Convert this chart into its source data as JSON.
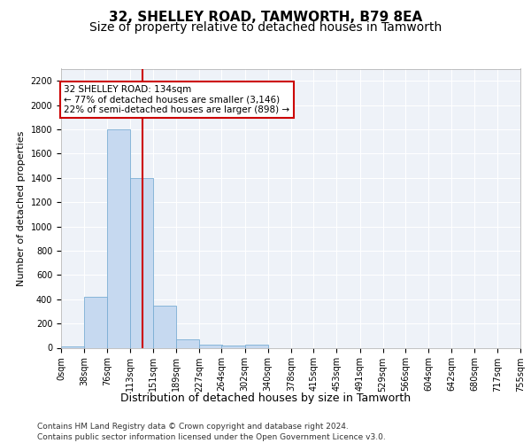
{
  "title": "32, SHELLEY ROAD, TAMWORTH, B79 8EA",
  "subtitle": "Size of property relative to detached houses in Tamworth",
  "xlabel": "Distribution of detached houses by size in Tamworth",
  "ylabel": "Number of detached properties",
  "bin_edges": [
    0,
    38,
    76,
    113,
    151,
    189,
    227,
    264,
    302,
    340,
    378,
    415,
    453,
    491,
    529,
    566,
    604,
    642,
    680,
    717,
    755
  ],
  "bar_values": [
    10,
    420,
    1800,
    1400,
    350,
    70,
    25,
    15,
    25,
    0,
    0,
    0,
    0,
    0,
    0,
    0,
    0,
    0,
    0,
    0
  ],
  "bar_color": "#c6d9f0",
  "bar_edge_color": "#7aadd4",
  "property_size": 134,
  "red_line_color": "#cc0000",
  "annotation_text": "32 SHELLEY ROAD: 134sqm\n← 77% of detached houses are smaller (3,146)\n22% of semi-detached houses are larger (898) →",
  "annotation_box_color": "#ffffff",
  "annotation_box_edge_color": "#cc0000",
  "footer_line1": "Contains HM Land Registry data © Crown copyright and database right 2024.",
  "footer_line2": "Contains public sector information licensed under the Open Government Licence v3.0.",
  "ylim": [
    0,
    2300
  ],
  "yticks": [
    0,
    200,
    400,
    600,
    800,
    1000,
    1200,
    1400,
    1600,
    1800,
    2000,
    2200
  ],
  "bg_color": "#eef2f8",
  "grid_color": "#ffffff",
  "title_fontsize": 11,
  "subtitle_fontsize": 10,
  "ylabel_fontsize": 8,
  "xlabel_fontsize": 9,
  "tick_fontsize": 7,
  "annot_fontsize": 7.5,
  "footer_fontsize": 6.5
}
